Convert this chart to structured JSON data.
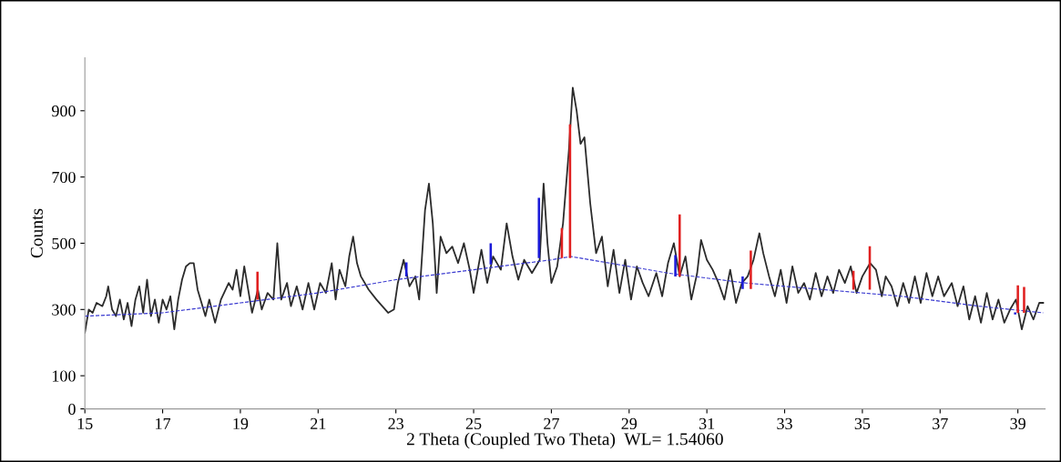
{
  "chart_data": {
    "type": "line",
    "xlabel": "2 Theta (Coupled Two Theta)  WL= 1.54060",
    "ylabel": "Counts",
    "xlim": [
      15,
      39.7
    ],
    "ylim": [
      0,
      1060
    ],
    "xticks": [
      15,
      17,
      19,
      21,
      23,
      25,
      27,
      29,
      31,
      33,
      35,
      37,
      39
    ],
    "yticks": [
      0,
      100,
      300,
      500,
      700,
      900
    ],
    "grid": false,
    "legend": false,
    "series": [
      {
        "color": "#2b2b2b",
        "line_style": "solid",
        "x": [
          15.0,
          15.1,
          15.2,
          15.3,
          15.45,
          15.55,
          15.6,
          15.7,
          15.8,
          15.9,
          16.0,
          16.1,
          16.2,
          16.3,
          16.4,
          16.5,
          16.6,
          16.7,
          16.8,
          16.9,
          17.0,
          17.1,
          17.2,
          17.3,
          17.4,
          17.5,
          17.6,
          17.7,
          17.8,
          17.9,
          18.0,
          18.1,
          18.2,
          18.35,
          18.5,
          18.7,
          18.8,
          18.9,
          19.0,
          19.1,
          19.2,
          19.3,
          19.45,
          19.55,
          19.7,
          19.85,
          19.95,
          20.05,
          20.2,
          20.3,
          20.45,
          20.6,
          20.75,
          20.9,
          21.05,
          21.2,
          21.35,
          21.45,
          21.55,
          21.7,
          21.8,
          21.9,
          22.0,
          22.1,
          22.3,
          22.5,
          22.65,
          22.8,
          22.95,
          23.05,
          23.2,
          23.35,
          23.5,
          23.6,
          23.75,
          23.85,
          23.95,
          24.05,
          24.15,
          24.3,
          24.45,
          24.6,
          24.75,
          24.9,
          25.0,
          25.2,
          25.35,
          25.5,
          25.7,
          25.85,
          26.0,
          26.15,
          26.3,
          26.5,
          26.7,
          26.8,
          26.9,
          27.0,
          27.15,
          27.3,
          27.45,
          27.55,
          27.65,
          27.75,
          27.85,
          28.0,
          28.15,
          28.3,
          28.45,
          28.6,
          28.75,
          28.9,
          29.05,
          29.2,
          29.35,
          29.5,
          29.7,
          29.85,
          30.0,
          30.15,
          30.3,
          30.45,
          30.6,
          30.75,
          30.85,
          31.0,
          31.15,
          31.3,
          31.45,
          31.6,
          31.75,
          31.9,
          32.05,
          32.2,
          32.35,
          32.45,
          32.6,
          32.75,
          32.9,
          33.05,
          33.2,
          33.35,
          33.5,
          33.65,
          33.8,
          33.95,
          34.1,
          34.25,
          34.4,
          34.55,
          34.7,
          34.85,
          35.0,
          35.2,
          35.35,
          35.5,
          35.6,
          35.75,
          35.9,
          36.05,
          36.2,
          36.35,
          36.5,
          36.65,
          36.8,
          36.95,
          37.1,
          37.3,
          37.45,
          37.6,
          37.75,
          37.9,
          38.05,
          38.2,
          38.35,
          38.5,
          38.65,
          38.8,
          38.95,
          39.1,
          39.25,
          39.4,
          39.55,
          39.65
        ],
        "values": [
          230,
          300,
          290,
          320,
          310,
          340,
          370,
          300,
          280,
          330,
          270,
          320,
          250,
          330,
          370,
          290,
          390,
          280,
          330,
          260,
          330,
          300,
          340,
          240,
          330,
          390,
          430,
          440,
          440,
          360,
          320,
          280,
          330,
          260,
          330,
          380,
          360,
          420,
          340,
          430,
          360,
          290,
          360,
          300,
          350,
          330,
          500,
          330,
          380,
          310,
          370,
          300,
          380,
          300,
          380,
          350,
          440,
          330,
          420,
          370,
          460,
          520,
          440,
          400,
          360,
          330,
          310,
          290,
          300,
          380,
          450,
          370,
          400,
          330,
          600,
          680,
          560,
          350,
          520,
          470,
          490,
          440,
          500,
          420,
          350,
          480,
          380,
          460,
          420,
          560,
          460,
          390,
          450,
          410,
          450,
          680,
          500,
          380,
          430,
          560,
          780,
          970,
          900,
          800,
          820,
          620,
          470,
          520,
          370,
          480,
          350,
          450,
          330,
          430,
          380,
          340,
          410,
          340,
          440,
          500,
          400,
          460,
          330,
          410,
          510,
          450,
          420,
          380,
          330,
          420,
          320,
          380,
          400,
          450,
          530,
          470,
          400,
          340,
          420,
          320,
          430,
          350,
          380,
          330,
          410,
          340,
          400,
          350,
          420,
          380,
          430,
          350,
          400,
          440,
          420,
          340,
          400,
          370,
          310,
          380,
          320,
          400,
          320,
          410,
          340,
          400,
          340,
          380,
          310,
          370,
          270,
          340,
          260,
          350,
          270,
          330,
          260,
          300,
          330,
          240,
          310,
          270,
          320,
          320
        ]
      },
      {
        "type": "line",
        "color": "#3a3ad0",
        "line_style": "dashed",
        "x": [
          15,
          17,
          19,
          21,
          23,
          25,
          27,
          27.5,
          28.5,
          30,
          32,
          34,
          36,
          38,
          39.65
        ],
        "values": [
          280,
          290,
          320,
          350,
          390,
          420,
          450,
          460,
          440,
          410,
          380,
          360,
          340,
          310,
          290
        ]
      },
      {
        "type": "bar",
        "color": "#e02020",
        "x": [
          19.44,
          27.27,
          27.48,
          30.3,
          32.13,
          34.77,
          35.19,
          39.0,
          39.16
        ],
        "base": [
          330,
          455,
          455,
          400,
          362,
          360,
          360,
          290,
          290
        ],
        "values": [
          84,
          91,
          404,
          187,
          116,
          57,
          131,
          83,
          78
        ]
      },
      {
        "type": "bar",
        "color": "#1a1ad8",
        "x": [
          23.27,
          25.44,
          26.68,
          30.19,
          31.92,
          38.93
        ],
        "base": [
          400,
          436,
          455,
          400,
          362,
          285
        ],
        "values": [
          42,
          64,
          182,
          64,
          38,
          6
        ]
      }
    ]
  }
}
